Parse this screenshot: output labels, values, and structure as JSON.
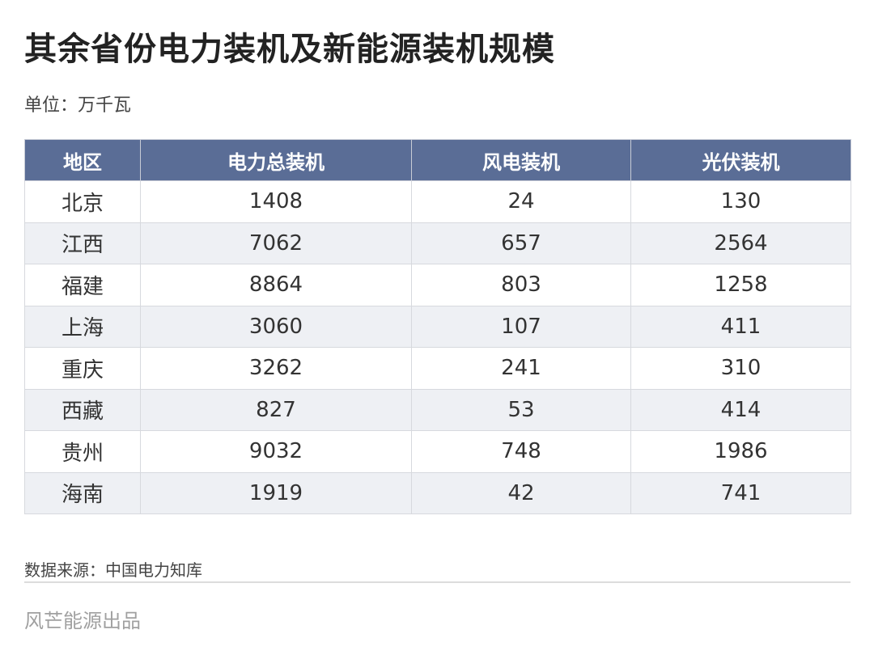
{
  "title": "其余省份电力装机及新能源装机规模",
  "unit": "单位：万千瓦",
  "table": {
    "headers": [
      "地区",
      "电力总装机",
      "风电装机",
      "光伏装机"
    ],
    "rows": [
      [
        "北京",
        "1408",
        "24",
        "130"
      ],
      [
        "江西",
        "7062",
        "657",
        "2564"
      ],
      [
        "福建",
        "8864",
        "803",
        "1258"
      ],
      [
        "上海",
        "3060",
        "107",
        "411"
      ],
      [
        "重庆",
        "3262",
        "241",
        "310"
      ],
      [
        "西藏",
        "827",
        "53",
        "414"
      ],
      [
        "贵州",
        "9032",
        "748",
        "1986"
      ],
      [
        "海南",
        "1919",
        "42",
        "741"
      ]
    ]
  },
  "source": "数据来源：中国电力知库",
  "brand": "风芒能源出品",
  "colors": {
    "header_bg": "#5a6d96",
    "alt_row_bg": "#eef0f4"
  }
}
